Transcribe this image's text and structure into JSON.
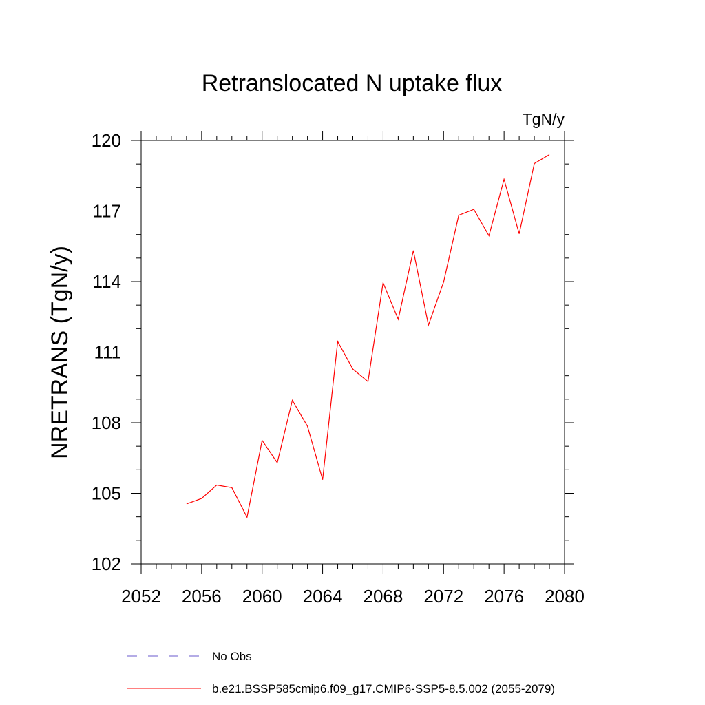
{
  "chart_data": {
    "type": "line",
    "title": "Retranslocated N uptake flux",
    "units_label": "TgN/y",
    "ylabel": "NRETRANS  (TgN/y)",
    "xlabel": "",
    "xlim": [
      2052,
      2080
    ],
    "ylim": [
      102,
      120
    ],
    "x_ticks": [
      "2052",
      "2056",
      "2060",
      "2064",
      "2068",
      "2072",
      "2076",
      "2080"
    ],
    "y_ticks": [
      "102",
      "105",
      "108",
      "111",
      "114",
      "117",
      "120"
    ],
    "grid": false,
    "legend_position": "bottom",
    "series": [
      {
        "name": "b.e21.BSSP585cmip6.f09_g17.CMIP6-SSP5-8.5.002 (2055-2079)",
        "color": "#ff0000",
        "style": "solid",
        "x": [
          2055,
          2056,
          2057,
          2058,
          2059,
          2060,
          2061,
          2062,
          2063,
          2064,
          2065,
          2066,
          2067,
          2068,
          2069,
          2070,
          2071,
          2072,
          2073,
          2074,
          2075,
          2076,
          2077,
          2078,
          2079
        ],
        "y": [
          104.55,
          104.78,
          105.35,
          105.24,
          103.98,
          107.25,
          106.3,
          108.95,
          107.85,
          105.58,
          111.45,
          110.28,
          109.75,
          113.95,
          112.4,
          115.32,
          112.15,
          113.98,
          116.82,
          117.07,
          115.95,
          118.35,
          116.03,
          119.02,
          119.4
        ]
      }
    ],
    "legend": [
      {
        "label": "No Obs",
        "color": "#6a5acd",
        "style": "dashed"
      },
      {
        "label": "b.e21.BSSP585cmip6.f09_g17.CMIP6-SSP5-8.5.002 (2055-2079)",
        "color": "#ff0000",
        "style": "solid"
      }
    ]
  }
}
